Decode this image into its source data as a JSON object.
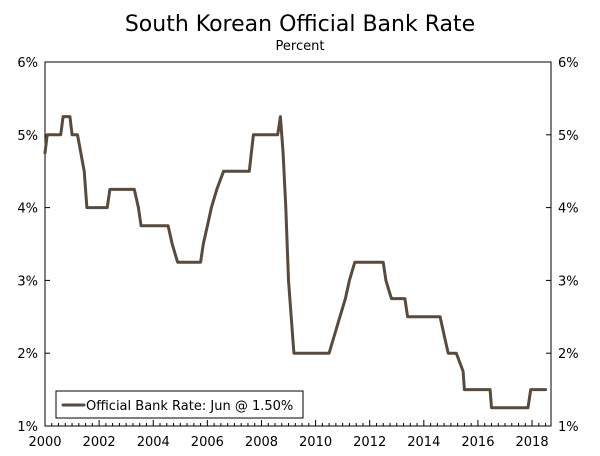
{
  "chart_data": {
    "type": "line",
    "title": "South Korean Official Bank Rate",
    "subtitle": "Percent",
    "xlim": [
      2000,
      2018.7
    ],
    "ylim": [
      1,
      6
    ],
    "x_ticks": [
      2000,
      2002,
      2004,
      2006,
      2008,
      2010,
      2012,
      2014,
      2016,
      2018
    ],
    "x_tick_labels": [
      "2000",
      "2002",
      "2004",
      "2006",
      "2008",
      "2010",
      "2012",
      "2014",
      "2016",
      "2018"
    ],
    "y_ticks": [
      1,
      2,
      3,
      4,
      5,
      6
    ],
    "y_tick_labels": [
      "1%",
      "2%",
      "3%",
      "4%",
      "5%",
      "6%"
    ],
    "grid": false,
    "legend_position": "bottom-left",
    "line_color": "#5a4a3c",
    "series": [
      {
        "name": "Official Bank Rate: Jun @ 1.50%",
        "points": [
          [
            2000.0,
            4.75
          ],
          [
            2000.08,
            5.0
          ],
          [
            2000.25,
            5.0
          ],
          [
            2000.58,
            5.0
          ],
          [
            2000.67,
            5.25
          ],
          [
            2000.92,
            5.25
          ],
          [
            2001.0,
            5.0
          ],
          [
            2001.2,
            5.0
          ],
          [
            2001.45,
            4.5
          ],
          [
            2001.55,
            4.0
          ],
          [
            2002.3,
            4.0
          ],
          [
            2002.4,
            4.25
          ],
          [
            2003.3,
            4.25
          ],
          [
            2003.45,
            4.0
          ],
          [
            2003.55,
            3.75
          ],
          [
            2004.55,
            3.75
          ],
          [
            2004.7,
            3.5
          ],
          [
            2004.9,
            3.25
          ],
          [
            2005.75,
            3.25
          ],
          [
            2005.85,
            3.5
          ],
          [
            2006.0,
            3.75
          ],
          [
            2006.15,
            4.0
          ],
          [
            2006.35,
            4.25
          ],
          [
            2006.6,
            4.5
          ],
          [
            2007.55,
            4.5
          ],
          [
            2007.7,
            5.0
          ],
          [
            2008.6,
            5.0
          ],
          [
            2008.7,
            5.25
          ],
          [
            2008.8,
            4.75
          ],
          [
            2008.9,
            4.0
          ],
          [
            2009.0,
            3.0
          ],
          [
            2009.1,
            2.5
          ],
          [
            2009.2,
            2.0
          ],
          [
            2010.5,
            2.0
          ],
          [
            2010.7,
            2.25
          ],
          [
            2010.9,
            2.5
          ],
          [
            2011.1,
            2.75
          ],
          [
            2011.25,
            3.0
          ],
          [
            2011.45,
            3.25
          ],
          [
            2012.5,
            3.25
          ],
          [
            2012.6,
            3.0
          ],
          [
            2012.8,
            2.75
          ],
          [
            2013.3,
            2.75
          ],
          [
            2013.4,
            2.5
          ],
          [
            2014.6,
            2.5
          ],
          [
            2014.75,
            2.25
          ],
          [
            2014.9,
            2.0
          ],
          [
            2015.2,
            2.0
          ],
          [
            2015.45,
            1.75
          ],
          [
            2015.5,
            1.5
          ],
          [
            2016.45,
            1.5
          ],
          [
            2016.5,
            1.25
          ],
          [
            2017.85,
            1.25
          ],
          [
            2017.95,
            1.5
          ],
          [
            2018.5,
            1.5
          ]
        ]
      }
    ]
  }
}
